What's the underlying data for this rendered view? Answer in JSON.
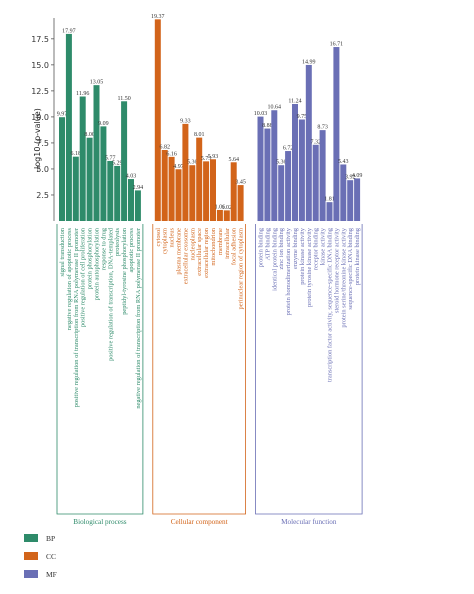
{
  "chart_data": {
    "type": "bar",
    "title": "",
    "ylabel": "-log10 (p-value)",
    "xlabel": "",
    "ylim": [
      0,
      19.5
    ],
    "yticks": [
      "2.5",
      "5.0",
      "7.5",
      "10.0",
      "12.5",
      "15.0",
      "17.5"
    ],
    "grid": false,
    "legend_position": "bottom-left",
    "colors": {
      "BP": "#2e8b6a",
      "CC": "#d2641a",
      "MF": "#6a6fb5"
    },
    "groups": [
      {
        "key": "BP",
        "label": "Biological process",
        "legend_label": "BP",
        "categories": [
          "signal transduction",
          "negative regulation of apoptotic process",
          "positive regulation of transcription from RNA polymerase II promoter",
          "positive regulation of cell proliferation",
          "protein phosphorylation",
          "protein autophosphorylation",
          "response to drug",
          "positive regulation of transcription, DNA-templated",
          "proteolysis",
          "peptidyl-tyrosine phosphorylation",
          "apoptotic process",
          "negative regulation of transcription from RNA polymerase II promoter"
        ],
        "values": [
          9.97,
          17.97,
          6.18,
          11.96,
          8.0,
          13.05,
          9.09,
          5.77,
          5.29,
          11.5,
          4.03,
          2.94
        ],
        "value_labels": [
          "9.97",
          "17.97",
          "6.18",
          "11.96",
          "8.00",
          "13.05",
          "9.09",
          "5.77",
          "5.29",
          "11.50",
          "4.03",
          "2.94"
        ]
      },
      {
        "key": "CC",
        "label": "Cellular component",
        "legend_label": "CC",
        "categories": [
          "cytosol",
          "cytoplasm",
          "nucleus",
          "plasma membrane",
          "extracellular exosome",
          "nucleoplasm",
          "extracellular space",
          "extracellular region",
          "mitochondrion",
          "membrane",
          "intracellular",
          "focal adhesion",
          "perinuclear region of cytoplasm"
        ],
        "values": [
          19.37,
          6.82,
          6.16,
          4.97,
          9.33,
          5.36,
          8.01,
          5.73,
          5.93,
          1.06,
          1.02,
          5.64,
          3.45
        ],
        "value_labels": [
          "19.37",
          "6.82",
          "6.16",
          "4.97",
          "9.33",
          "5.36",
          "8.01",
          "5.73",
          "5.93",
          "1.06",
          "1.02",
          "5.64",
          "3.45"
        ]
      },
      {
        "key": "MF",
        "label": "Molecular function",
        "legend_label": "MF",
        "categories": [
          "protein binding",
          "ATP binding",
          "identical protein binding",
          "zinc ion binding",
          "protein homodimerization activity",
          "enzyme binding",
          "protein kinase activity",
          "protein tyrosine kinase activity",
          "receptor binding",
          "kinase activity",
          "transcription factor activity, sequence-specific DNA binding",
          "steroid hormone receptor activity",
          "protein serine/threonine kinase activity",
          "sequence-specific DNA binding",
          "protein kinase binding"
        ],
        "values": [
          10.03,
          8.88,
          10.64,
          5.36,
          6.72,
          11.24,
          9.75,
          14.99,
          7.32,
          8.73,
          1.81,
          16.71,
          5.43,
          3.92,
          4.09
        ],
        "value_labels": [
          "10.03",
          "8.88",
          "10.64",
          "5.36",
          "6.72",
          "11.24",
          "9.75",
          "14.99",
          "7.32",
          "8.73",
          "1.81",
          "16.71",
          "5.43",
          "3.92",
          "4.09"
        ]
      }
    ]
  }
}
